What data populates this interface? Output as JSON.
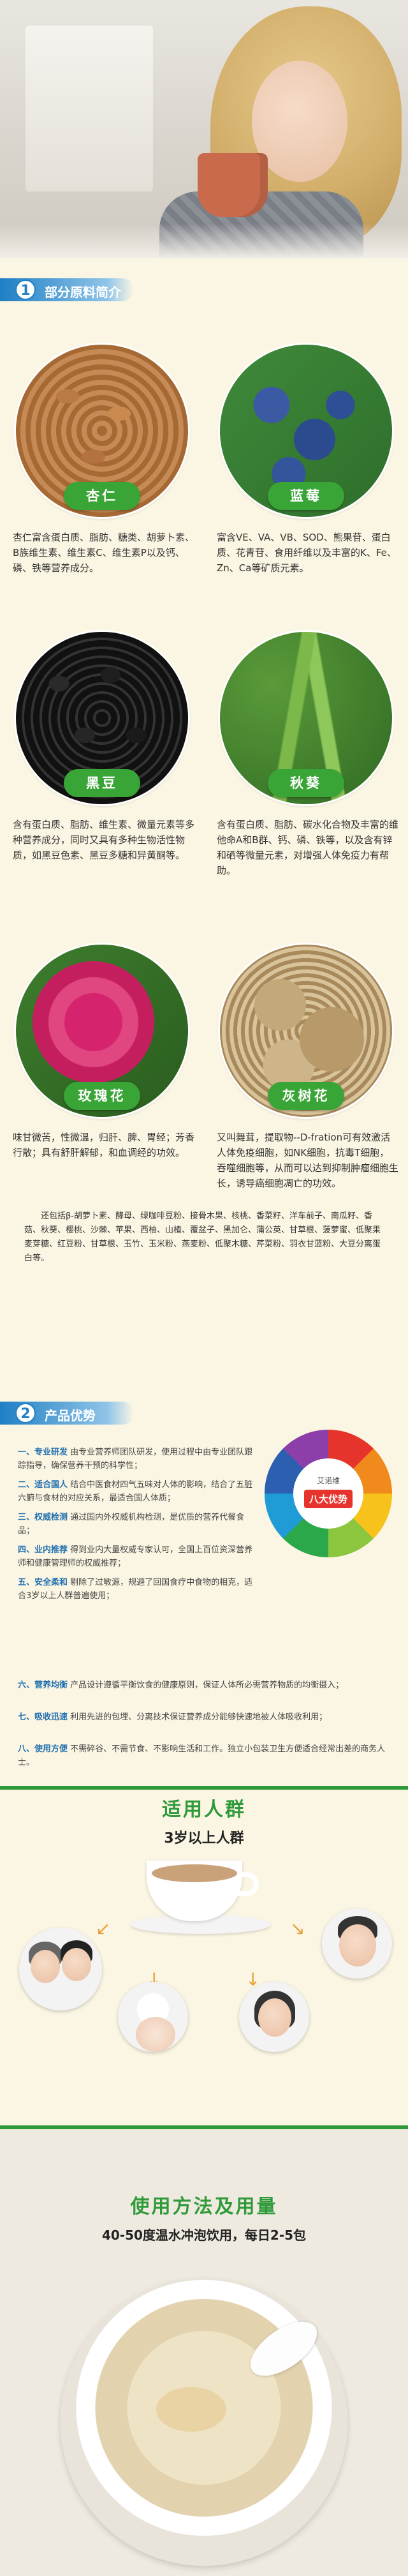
{
  "section1": {
    "num": "1",
    "title": "部分原料简介"
  },
  "ingredients": [
    {
      "name": "杏仁",
      "desc": "杏仁富含蛋白质、脂肪、糖类、胡萝卜素、B族维生素、维生素C、维生素P以及钙、磷、铁等营养成分。"
    },
    {
      "name": "蓝莓",
      "desc": "富含VE、VA、VB、SOD、熊果苷、蛋白质、花青苷、食用纤维以及丰富的K、Fe、Zn、Ca等矿质元素。"
    },
    {
      "name": "黑豆",
      "desc": "含有蛋白质、脂肪、维生素、微量元素等多种营养成分，同时又具有多种生物活性物质，如黑豆色素、黑豆多糖和异黄酮等。"
    },
    {
      "name": "秋葵",
      "desc": "含有蛋白质、脂肪、碳水化合物及丰富的维他命A和B群、钙、磷、铁等，以及含有锌和硒等微量元素，对增强人体免疫力有帮助。"
    },
    {
      "name": "玫瑰花",
      "desc": "味甘微苦，性微温，归肝、脾、胃经；芳香行散；具有舒肝解郁，和血调经的功效。"
    },
    {
      "name": "灰树花",
      "desc": "又叫舞茸，提取物--D-fration可有效激活人体免疫细胞，如NK细胞，抗毒T细胞，吞噬细胞等，从而可以达到抑制肿瘤细胞生长，诱导癌细胞凋亡的功效。"
    }
  ],
  "other_ingredients": "还包括β-胡萝卜素、酵母、绿咖啡豆粉、接骨木果、核桃、香菜籽、洋车前子、南瓜籽、香菇、秋葵、樱桃、沙棘、苹果、西柚、山楂、覆盆子、黑加仑、蒲公英、甘草根、菠萝蜜、低聚果麦芽糖、红豆粉、甘草根、玉竹、玉米粉、燕麦粉、低聚木糖、芹菜粉、羽衣甘蓝粉、大豆分离蛋白等。",
  "section2": {
    "num": "2",
    "title": "产品优势"
  },
  "advantages": [
    {
      "key": "一、专业研发",
      "text": "由专业营养师团队研发，使用过程中由专业团队跟踪指导，确保营养干预的科学性；"
    },
    {
      "key": "二、适合国人",
      "text": "结合中医食材四气五味对人体的影响，结合了五脏六腑与食材的对应关系，最适合国人体质；"
    },
    {
      "key": "三、权威检测",
      "text": "通过国内外权威机构检测，是优质的营养代餐食品；"
    },
    {
      "key": "四、业内推荐",
      "text": "得到业内大量权威专家认可，全国上百位资深营养师和健康管理师的权威推荐；"
    },
    {
      "key": "五、安全柔和",
      "text": "剔除了过敏源，规避了回国食疗中食物的相克，适合3岁以上人群普遍使用；"
    }
  ],
  "advantages_long": [
    {
      "key": "六、营养均衡",
      "text": "产品设计遵循平衡饮食的健康原则，保证人体所必需营养物质的均衡摄入；"
    },
    {
      "key": "七、吸收迅速",
      "text": "利用先进的包埋、分离技术保证营养成分能够快速地被人体吸收利用；"
    },
    {
      "key": "八、使用方便",
      "text": "不需碎谷、不需节食、不影响生活和工作。独立小包装卫生方便适合经常出差的商务人士。"
    }
  ],
  "wheel": {
    "brand": "艾诺维",
    "label": "八大优势"
  },
  "population": {
    "title": "适用人群",
    "subtitle": "3岁以上人群"
  },
  "usage": {
    "title": "使用方法及用量",
    "subtitle": "40-50度温水冲泡饮用，每日2-5包"
  },
  "colors": {
    "accent_blue": "#1f7fc4",
    "accent_green": "#3aa537",
    "title_green": "#2f9a3a"
  },
  "icons": {
    "arrow": "curved-arrow-icon"
  }
}
